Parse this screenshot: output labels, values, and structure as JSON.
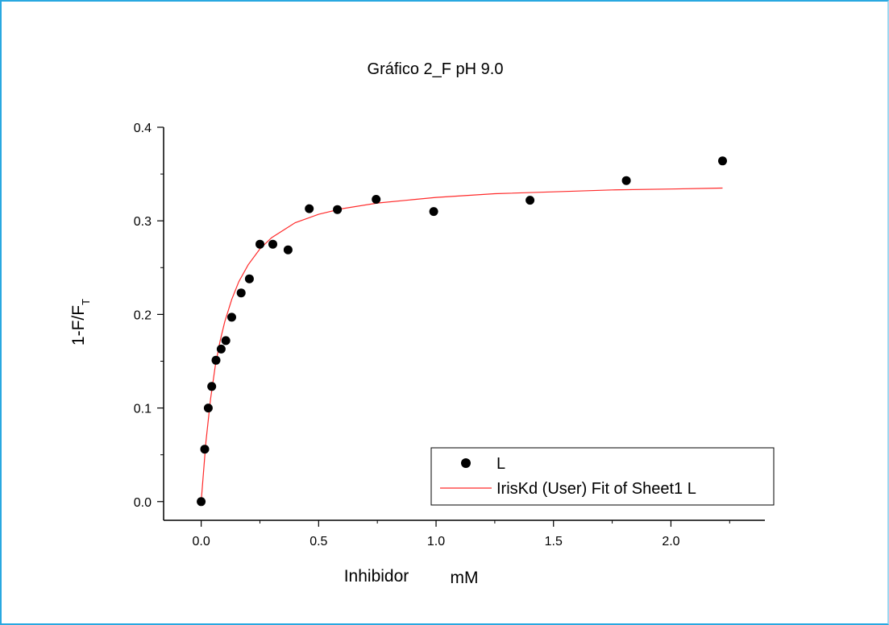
{
  "chart_data": {
    "type": "scatter",
    "title": "Gráfico 2_F  pH 9.0",
    "xlabel": "Inhibidor",
    "xlabel_unit": "mM",
    "ylabel": "1-F/F",
    "ylabel_subscript": "T",
    "xlim": [
      -0.16,
      2.4
    ],
    "ylim": [
      -0.02,
      0.4
    ],
    "xticks": [
      "0.0",
      "0.5",
      "1.0",
      "1.5",
      "2.0"
    ],
    "yticks": [
      "0.0",
      "0.1",
      "0.2",
      "0.3",
      "0.4"
    ],
    "grid": false,
    "legend_position": "bottom-right",
    "series": [
      {
        "name": "L",
        "kind": "points",
        "color": "#000000",
        "x": [
          0.0,
          0.015,
          0.03,
          0.045,
          0.063,
          0.085,
          0.105,
          0.13,
          0.17,
          0.205,
          0.25,
          0.305,
          0.37,
          0.46,
          0.58,
          0.745,
          0.99,
          1.4,
          1.81,
          2.22
        ],
        "y": [
          0.0,
          0.056,
          0.1,
          0.123,
          0.151,
          0.163,
          0.172,
          0.197,
          0.223,
          0.238,
          0.275,
          0.275,
          0.269,
          0.313,
          0.312,
          0.323,
          0.31,
          0.322,
          0.343,
          0.364
        ]
      },
      {
        "name": "IrisKd (User) Fit of Sheet1 L",
        "kind": "fit-line",
        "color": "#ff2a2a",
        "x": [
          0.0,
          0.02,
          0.04,
          0.06,
          0.08,
          0.1,
          0.13,
          0.16,
          0.2,
          0.25,
          0.3,
          0.4,
          0.5,
          0.6,
          0.75,
          1.0,
          1.25,
          1.5,
          1.75,
          2.0,
          2.22
        ],
        "y": [
          0.0,
          0.064,
          0.11,
          0.145,
          0.171,
          0.192,
          0.216,
          0.235,
          0.253,
          0.27,
          0.282,
          0.298,
          0.307,
          0.313,
          0.319,
          0.325,
          0.329,
          0.331,
          0.333,
          0.334,
          0.335
        ]
      }
    ]
  }
}
